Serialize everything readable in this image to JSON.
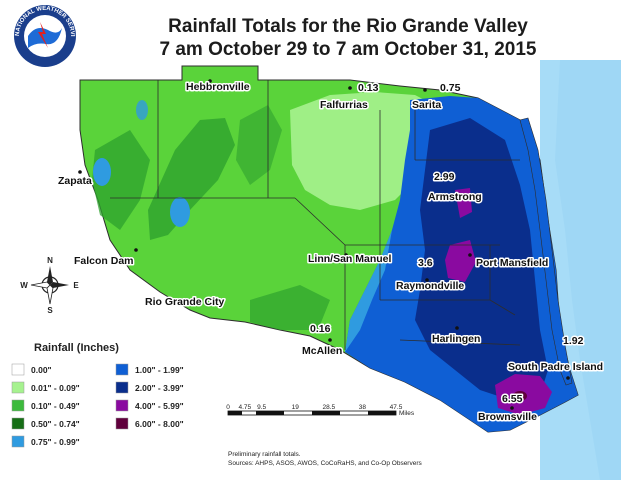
{
  "title": {
    "line1": "Rainfall Totals  for the Rio Grande Valley",
    "line2": "7 am October 29 to 7 am October 31, 2015"
  },
  "logo": {
    "text": "NATIONAL WEATHER SERVICE"
  },
  "compass": {
    "n": "N",
    "s": "S",
    "e": "E",
    "w": "W"
  },
  "places": {
    "hebbronville": "Hebbronville",
    "falfurrias": "Falfurrias",
    "sarita": "Sarita",
    "zapata": "Zapata",
    "armstrong": "Armstrong",
    "falcon_dam": "Falcon Dam",
    "linn": "Linn/San Manuel",
    "port_mansfield": "Port Mansfield",
    "raymondville": "Raymondville",
    "rio_grande_city": "Rio Grande City",
    "harlingen": "Harlingen",
    "mcallen": "McAllen",
    "south_padre": "South Padre Island",
    "brownsville": "Brownsville"
  },
  "amounts": {
    "falfurrias": "0.13",
    "sarita": "0.75",
    "armstrong": "2.99",
    "raymondville": "3.6",
    "mcallen": "0.16",
    "south_padre": "1.92",
    "brownsville": "6.55"
  },
  "legend": {
    "title": "Rainfall (Inches)",
    "items": [
      {
        "label": "0.00\"",
        "color": "#ffffff"
      },
      {
        "label": "0.01\" - 0.09\"",
        "color": "#a6f28f"
      },
      {
        "label": "0.10\" - 0.49\"",
        "color": "#3dba3d"
      },
      {
        "label": "0.50\" - 0.74\"",
        "color": "#166e16"
      },
      {
        "label": "0.75\" - 0.99\"",
        "color": "#2f9be0"
      },
      {
        "label": "1.00\" - 1.99\"",
        "color": "#0f5fd4"
      },
      {
        "label": "2.00\" - 3.99\"",
        "color": "#0a2e8c"
      },
      {
        "label": "4.00\" - 5.99\"",
        "color": "#8a0aa0"
      },
      {
        "label": "6.00\" - 8.00\"",
        "color": "#60003c"
      }
    ]
  },
  "scale": {
    "ticks": [
      "0",
      "4.75",
      "9.5",
      "19",
      "28.5",
      "38",
      "47.5"
    ],
    "unit": "Miles"
  },
  "footer": {
    "line1": "Preliminary rainfall totals.",
    "line2": "Sources: AHPS, ASOS, AWOS, CoCoRaHS, and Co-Op Observers"
  },
  "colors": {
    "water": "#a7dcf7",
    "land_base": "#5ad33a",
    "boundary": "#333333"
  }
}
